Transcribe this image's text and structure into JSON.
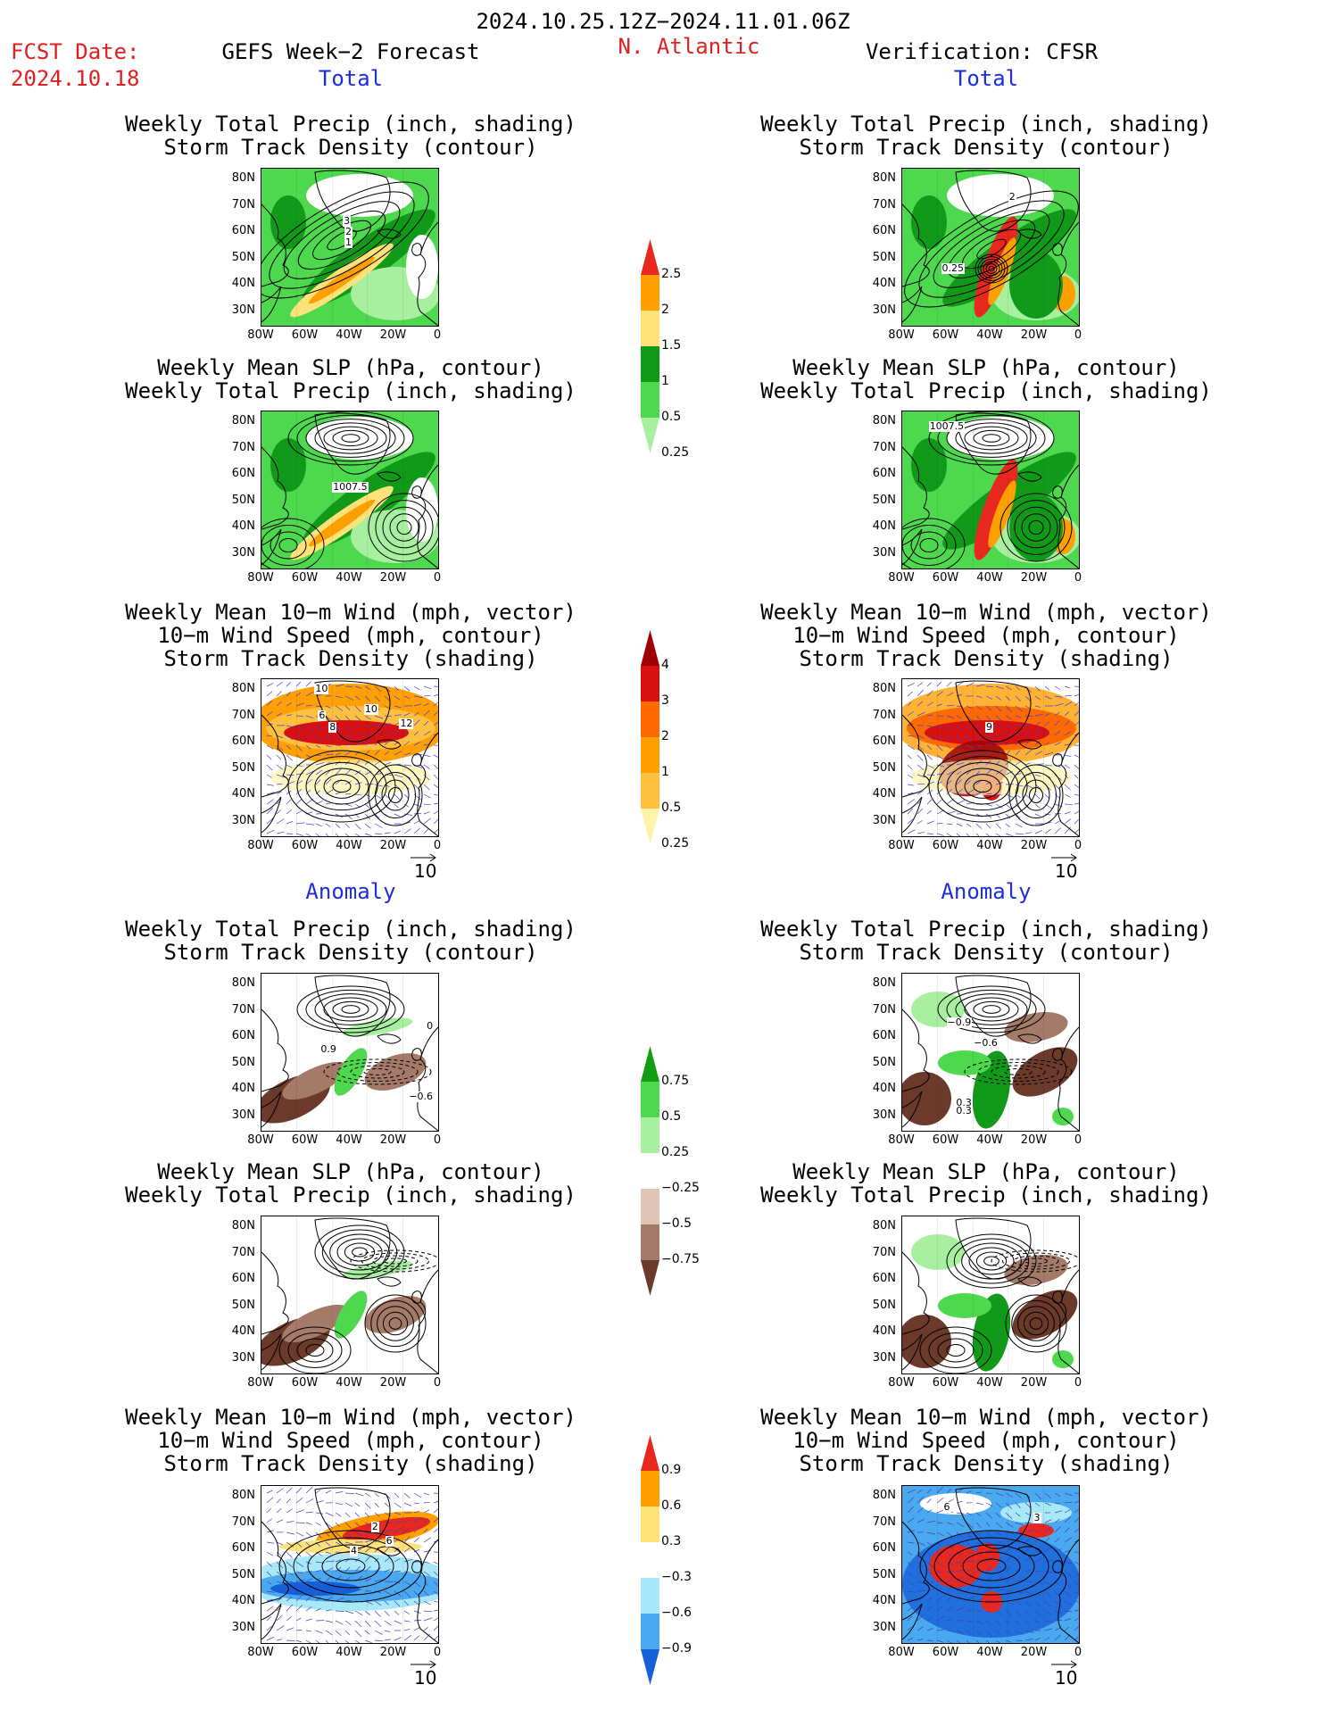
{
  "header": {
    "date_range": "2024.10.25.12Z−2024.11.01.06Z",
    "fcst_label": "FCST Date:",
    "fcst_date": "2024.10.18",
    "left_title": "GEFS Week−2 Forecast",
    "region": "N. Atlantic",
    "right_title": "Verification: CFSR"
  },
  "sections": {
    "total": "Total",
    "anomaly": "Anomaly"
  },
  "panel_titles": {
    "precip_track": [
      "Weekly Total Precip (inch, shading)",
      "Storm Track Density (contour)"
    ],
    "slp_precip": [
      "Weekly Mean SLP (hPa, contour)",
      "Weekly Total Precip (inch, shading)"
    ],
    "wind_track": [
      "Weekly Mean 10−m Wind (mph, vector)",
      "10−m Wind Speed (mph, contour)",
      "Storm Track Density (shading)"
    ]
  },
  "axes": {
    "lat_ticks": [
      "80N",
      "70N",
      "60N",
      "50N",
      "40N",
      "30N"
    ],
    "lon_ticks": [
      "80W",
      "60W",
      "40W",
      "20W",
      "0"
    ]
  },
  "vector_ref": "10",
  "colorbars": {
    "precip_total": {
      "labels": [
        "2.5",
        "2",
        "1.5",
        "1",
        "0.5",
        "0.25"
      ],
      "colors": [
        "#e8281e",
        "#ff9f00",
        "#ffe27a",
        "#119a1a",
        "#4ed84e",
        "#a8f0a0"
      ]
    },
    "track_total": {
      "labels": [
        "4",
        "3",
        "2",
        "1",
        "0.5",
        "0.25"
      ],
      "colors": [
        "#a00000",
        "#d81010",
        "#ff6a00",
        "#ff9f00",
        "#ffc040",
        "#fff3a8"
      ]
    },
    "precip_anom": {
      "labels": [
        "0.75",
        "0.5",
        "0.25",
        "−0.25",
        "−0.5",
        "−0.75"
      ],
      "colors": [
        "#139d14",
        "#4ed84e",
        "#a8f0a0",
        "#ffffff",
        "#e0c4b8",
        "#a47a68",
        "#6b3a2a"
      ]
    },
    "track_anom": {
      "labels": [
        "0.9",
        "0.6",
        "0.3",
        "−0.3",
        "−0.6",
        "−0.9"
      ],
      "colors": [
        "#e8281e",
        "#ff9f00",
        "#ffe27a",
        "#ffffff",
        "#a8e8f8",
        "#4aa8ee",
        "#1560d8"
      ]
    }
  },
  "contour_labels": {
    "fcst_precip_track": [
      "3",
      "2",
      "1"
    ],
    "ver_precip_track": [
      "2",
      "0.25"
    ],
    "fcst_slp": [
      "1007.5"
    ],
    "ver_slp": [
      "1007.5"
    ],
    "fcst_wind": [
      "10",
      "6",
      "8",
      "10",
      "12"
    ],
    "ver_wind": [
      "9"
    ],
    "fcst_precip_anom": [
      "0.9",
      "0",
      "−0.6"
    ],
    "ver_precip_anom": [
      "−0.9",
      "−0.6",
      "0.3",
      "0.3"
    ],
    "fcst_wind_anom": [
      "2",
      "4",
      "6"
    ],
    "ver_wind_anom": [
      "6",
      "3"
    ]
  }
}
